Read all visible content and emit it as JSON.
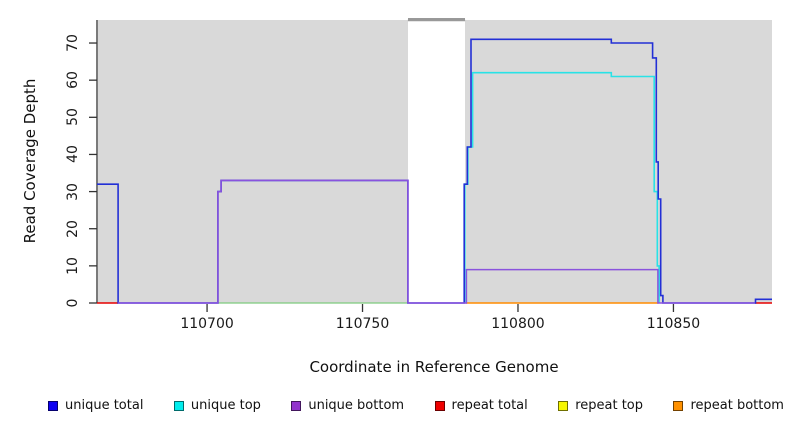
{
  "axes": {
    "x_label": "Coordinate in Reference Genome",
    "y_label": "Read Coverage Depth",
    "x_ticks": [
      {
        "value": 110700,
        "label": "110700"
      },
      {
        "value": 110750,
        "label": "110750"
      },
      {
        "value": 110800,
        "label": "110800"
      },
      {
        "value": 110850,
        "label": "110850"
      }
    ],
    "y_ticks": [
      {
        "value": 0,
        "label": "0"
      },
      {
        "value": 10,
        "label": "10"
      },
      {
        "value": 20,
        "label": "20"
      },
      {
        "value": 30,
        "label": "30"
      },
      {
        "value": 40,
        "label": "40"
      },
      {
        "value": 50,
        "label": "50"
      },
      {
        "value": 60,
        "label": "60"
      },
      {
        "value": 70,
        "label": "70"
      }
    ]
  },
  "legend": {
    "items": [
      {
        "label": "unique total",
        "color": "#0d00f2"
      },
      {
        "label": "unique top",
        "color": "#00eded"
      },
      {
        "label": "unique bottom",
        "color": "#9233cc"
      },
      {
        "label": "repeat total",
        "color": "#ee0000"
      },
      {
        "label": "repeat top",
        "color": "#f7f700"
      },
      {
        "label": "repeat bottom",
        "color": "#ff9100"
      }
    ]
  },
  "chart_data": {
    "type": "line",
    "title": "",
    "xlabel": "Coordinate in Reference Genome",
    "ylabel": "Read Coverage Depth",
    "xlim": [
      110664.6,
      110881.7
    ],
    "ylim": [
      0,
      76.2
    ],
    "grid": false,
    "plot_background": "#d9d9d9",
    "gap_band": {
      "x_start": 110764.6,
      "x_end": 110783.0,
      "fill": "#ffffff",
      "top_line_color": "#999999"
    },
    "legend_position": "bottom",
    "series": [
      {
        "name": "unique top",
        "color": "#29e2e6",
        "width": 1.6,
        "segments": [
          [
            [
              110782.9,
              0
            ],
            [
              110782.9,
              32
            ],
            [
              110783.9,
              32
            ],
            [
              110783.9,
              42
            ],
            [
              110785.4,
              42
            ],
            [
              110785.4,
              62
            ],
            [
              110830,
              62
            ],
            [
              110830,
              61
            ],
            [
              110843.8,
              61
            ],
            [
              110843.8,
              30
            ],
            [
              110844.8,
              30
            ],
            [
              110844.8,
              10
            ],
            [
              110845.4,
              10
            ],
            [
              110845.4,
              0
            ]
          ]
        ]
      },
      {
        "name": "zero baseline green",
        "color": "#7ecb7e",
        "width": 1.3,
        "segments": [
          [
            [
              110703.5,
              0
            ],
            [
              110764.5,
              0
            ]
          ]
        ]
      },
      {
        "name": "repeat total",
        "color": "#e60000",
        "width": 1.4,
        "segments": [
          [
            [
              110664.6,
              0
            ],
            [
              110671.4,
              0
            ]
          ],
          [
            [
              110876.2,
              0
            ],
            [
              110881.7,
              0
            ]
          ]
        ]
      },
      {
        "name": "repeat bottom",
        "color": "#ff8c00",
        "width": 1.4,
        "segments": [
          [
            [
              110783.2,
              0
            ],
            [
              110845.2,
              0
            ]
          ]
        ]
      },
      {
        "name": "unique total",
        "color": "#2330d6",
        "width": 1.6,
        "segments": [
          [
            [
              110664.6,
              32
            ],
            [
              110671.4,
              32
            ],
            [
              110671.4,
              0
            ],
            [
              110703.5,
              0
            ],
            [
              110703.5,
              30
            ],
            [
              110704.5,
              30
            ],
            [
              110704.5,
              33
            ],
            [
              110764.6,
              33
            ],
            [
              110764.6,
              0
            ],
            [
              110782.7,
              0
            ],
            [
              110782.7,
              32
            ],
            [
              110783.7,
              32
            ],
            [
              110783.7,
              42
            ],
            [
              110784.9,
              42
            ],
            [
              110784.9,
              71
            ],
            [
              110830,
              71
            ],
            [
              110830,
              70
            ],
            [
              110843.3,
              70
            ],
            [
              110843.3,
              66
            ],
            [
              110844.5,
              66
            ],
            [
              110844.5,
              38
            ],
            [
              110845.1,
              38
            ],
            [
              110845.1,
              28
            ],
            [
              110845.9,
              28
            ],
            [
              110845.9,
              2
            ],
            [
              110846.6,
              2
            ],
            [
              110846.6,
              0
            ],
            [
              110876.4,
              0
            ],
            [
              110876.4,
              1
            ],
            [
              110881.7,
              1
            ]
          ]
        ]
      },
      {
        "name": "unique bottom",
        "color": "#8a53dd",
        "width": 1.5,
        "segments": [
          [
            [
              110671.4,
              0
            ],
            [
              110703.5,
              0
            ],
            [
              110703.5,
              30
            ],
            [
              110704.5,
              30
            ],
            [
              110704.5,
              33
            ],
            [
              110764.6,
              33
            ],
            [
              110764.6,
              0
            ],
            [
              110783.4,
              0
            ],
            [
              110783.4,
              9
            ],
            [
              110845,
              9
            ],
            [
              110845,
              0
            ],
            [
              110876.2,
              0
            ]
          ]
        ]
      },
      {
        "name": "clipped top marker",
        "color": "#999999",
        "width": 1.6,
        "segments": [
          [
            [
              110764.6,
              76.1
            ],
            [
              110783,
              76.1
            ]
          ]
        ]
      }
    ]
  }
}
